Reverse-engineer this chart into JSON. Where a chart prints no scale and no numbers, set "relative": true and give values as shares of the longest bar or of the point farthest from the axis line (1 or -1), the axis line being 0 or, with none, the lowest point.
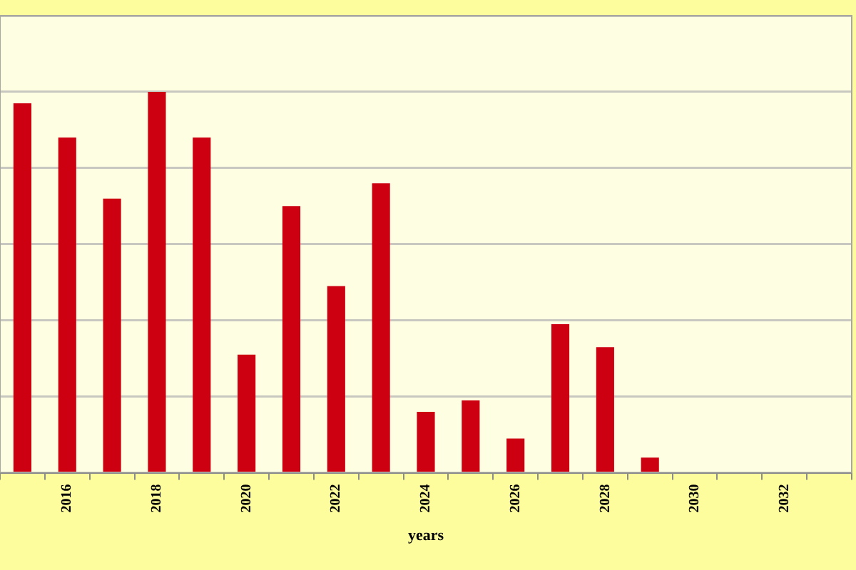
{
  "chart_data": {
    "type": "bar",
    "xlabel": "years",
    "relative": true,
    "grid": "y",
    "color": "#cc0010",
    "categories": [
      null,
      "2016",
      null,
      "2018",
      null,
      "2020",
      null,
      "2022",
      null,
      "2024",
      null,
      "2026",
      null,
      "2028",
      null,
      "2030",
      null,
      "2032",
      null
    ],
    "values": [
      0.97,
      0.88,
      0.72,
      1,
      0.88,
      0.31,
      0.7,
      0.49,
      0.76,
      0.16,
      0.19,
      0.09,
      0.39,
      0.33,
      0.04,
      null,
      null,
      null,
      null
    ]
  }
}
